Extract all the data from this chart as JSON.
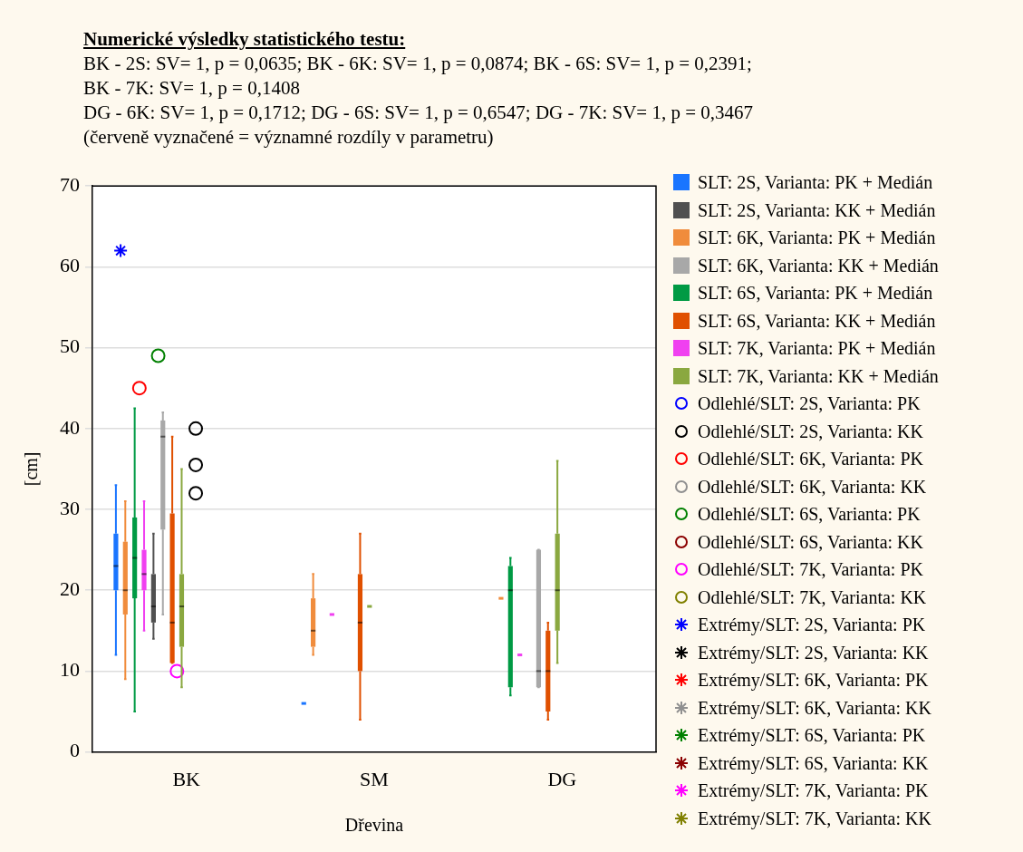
{
  "chart_data": {
    "type": "box",
    "title": "Numerické výsledky statistického testu:",
    "annotations": [
      "BK - 2S: SV= 1, p = 0,0635; BK - 6K: SV= 1, p = 0,0874; BK - 6S: SV= 1, p = 0,2391;",
      "BK - 7K: SV= 1, p = 0,1408",
      "DG - 6K: SV= 1, p = 0,1712; DG - 6S: SV= 1, p = 0,6547; DG - 7K: SV= 1, p = 0,3467",
      "(červeně vyznačené = významné rozdíly v parametru)"
    ],
    "xlabel": "Dřevina",
    "ylabel": "[cm]",
    "categories": [
      "BK",
      "SM",
      "DG"
    ],
    "ylim": [
      0,
      70
    ],
    "yticks": [
      0,
      10,
      20,
      30,
      40,
      50,
      60,
      70
    ],
    "grid": "y",
    "legend": "right",
    "series": [
      {
        "name": "SLT: 2S, Varianta: PK + Medián",
        "color": "#1a75ff",
        "boxes": [
          {
            "low": 12,
            "q1": 20,
            "median": 23,
            "q3": 27,
            "high": 33
          },
          {
            "low": 6,
            "q1": 6,
            "median": 6,
            "q3": 6,
            "high": 6
          },
          null
        ]
      },
      {
        "name": "SLT: 2S, Varianta: KK + Medián",
        "color": "#505050",
        "boxes": [
          {
            "low": 14,
            "q1": 16,
            "median": 18,
            "q3": 22,
            "high": 27
          },
          null,
          null
        ]
      },
      {
        "name": "SLT: 6K, Varianta: PK + Medián",
        "color": "#f08c3c",
        "boxes": [
          {
            "low": 9,
            "q1": 17,
            "median": 20,
            "q3": 26,
            "high": 31
          },
          {
            "low": 12,
            "q1": 13,
            "median": 15,
            "q3": 19,
            "high": 22
          },
          {
            "low": 19,
            "q1": 19,
            "median": 19,
            "q3": 19,
            "high": 19
          }
        ]
      },
      {
        "name": "SLT: 6K, Varianta: KK + Medián",
        "color": "#a8a8a8",
        "boxes": [
          {
            "low": 17,
            "q1": 27.5,
            "median": 39,
            "q3": 41,
            "high": 42
          },
          null,
          {
            "low": 8,
            "q1": 8,
            "median": 10,
            "q3": 25,
            "high": 25
          }
        ]
      },
      {
        "name": "SLT: 6S, Varianta: PK + Medián",
        "color": "#009a44",
        "boxes": [
          {
            "low": 5,
            "q1": 19,
            "median": 24,
            "q3": 29,
            "high": 42.5
          },
          null,
          {
            "low": 7,
            "q1": 8,
            "median": 20,
            "q3": 23,
            "high": 24
          }
        ]
      },
      {
        "name": "SLT: 6S, Varianta: KK + Medián",
        "color": "#e05000",
        "boxes": [
          {
            "low": 11,
            "q1": 11,
            "median": 16,
            "q3": 29.5,
            "high": 39
          },
          {
            "low": 4,
            "q1": 10,
            "median": 16,
            "q3": 22,
            "high": 27
          },
          {
            "low": 4,
            "q1": 5,
            "median": 10,
            "q3": 15,
            "high": 16
          }
        ]
      },
      {
        "name": "SLT: 7K, Varianta: PK + Medián",
        "color": "#f040f0",
        "boxes": [
          {
            "low": 15,
            "q1": 20,
            "median": 22,
            "q3": 25,
            "high": 31
          },
          {
            "low": 17,
            "q1": 17,
            "median": 17,
            "q3": 17,
            "high": 17
          },
          {
            "low": 12,
            "q1": 12,
            "median": 12,
            "q3": 12,
            "high": 12
          }
        ]
      },
      {
        "name": "SLT: 7K, Varianta: KK + Medián",
        "color": "#8aa840",
        "boxes": [
          {
            "low": 8,
            "q1": 13,
            "median": 18,
            "q3": 22,
            "high": 35
          },
          {
            "low": 18,
            "q1": 18,
            "median": 18,
            "q3": 18,
            "high": 18
          },
          {
            "low": 11,
            "q1": 15,
            "median": 20,
            "q3": 27,
            "high": 36
          }
        ]
      },
      {
        "name": "Odlehlé/SLT: 2S, Varianta: PK",
        "type": "scatter",
        "marker": "circle",
        "color": "#0000ff",
        "values": [
          null,
          null,
          null
        ]
      },
      {
        "name": "Odlehlé/SLT: 2S, Varianta: KK",
        "type": "scatter",
        "marker": "circle",
        "color": "#000000",
        "x": [
          "BK",
          "BK",
          "BK"
        ],
        "values": [
          40,
          35.5,
          32
        ]
      },
      {
        "name": "Odlehlé/SLT: 6K, Varianta: PK",
        "type": "scatter",
        "marker": "circle",
        "color": "#ff0000",
        "x": [
          "BK"
        ],
        "values": [
          45
        ]
      },
      {
        "name": "Odlehlé/SLT: 6K, Varianta: KK",
        "type": "scatter",
        "marker": "circle",
        "color": "#909090",
        "values": [
          null,
          null,
          null
        ]
      },
      {
        "name": "Odlehlé/SLT: 6S, Varianta: PK",
        "type": "scatter",
        "marker": "circle",
        "color": "#008000",
        "x": [
          "BK"
        ],
        "values": [
          49
        ]
      },
      {
        "name": "Odlehlé/SLT: 6S, Varianta: KK",
        "type": "scatter",
        "marker": "circle",
        "color": "#8b0000",
        "values": [
          null,
          null,
          null
        ]
      },
      {
        "name": "Odlehlé/SLT: 7K, Varianta: PK",
        "type": "scatter",
        "marker": "circle",
        "color": "#ff00ff",
        "x": [
          "BK"
        ],
        "values": [
          10
        ]
      },
      {
        "name": "Odlehlé/SLT: 7K, Varianta: KK",
        "type": "scatter",
        "marker": "circle",
        "color": "#808000",
        "values": [
          null,
          null,
          null
        ]
      },
      {
        "name": "Extrémy/SLT: 2S, Varianta: PK",
        "type": "scatter",
        "marker": "cross",
        "color": "#0000ff",
        "x": [
          "BK"
        ],
        "values": [
          62
        ]
      },
      {
        "name": "Extrémy/SLT: 2S, Varianta: KK",
        "type": "scatter",
        "marker": "cross",
        "color": "#000000",
        "values": [
          null,
          null,
          null
        ]
      },
      {
        "name": "Extrémy/SLT: 6K, Varianta: PK",
        "type": "scatter",
        "marker": "cross",
        "color": "#ff0000",
        "values": [
          null,
          null,
          null
        ]
      },
      {
        "name": "Extrémy/SLT: 6K, Varianta: KK",
        "type": "scatter",
        "marker": "cross",
        "color": "#909090",
        "values": [
          null,
          null,
          null
        ]
      },
      {
        "name": "Extrémy/SLT: 6S, Varianta: PK",
        "type": "scatter",
        "marker": "cross",
        "color": "#008000",
        "values": [
          null,
          null,
          null
        ]
      },
      {
        "name": "Extrémy/SLT: 6S, Varianta: KK",
        "type": "scatter",
        "marker": "cross",
        "color": "#8b0000",
        "values": [
          null,
          null,
          null
        ]
      },
      {
        "name": "Extrémy/SLT: 7K, Varianta: PK",
        "type": "scatter",
        "marker": "cross",
        "color": "#ff00ff",
        "values": [
          null,
          null,
          null
        ]
      },
      {
        "name": "Extrémy/SLT: 7K, Varianta: KK",
        "type": "scatter",
        "marker": "cross",
        "color": "#808000",
        "values": [
          null,
          null,
          null
        ]
      }
    ]
  }
}
